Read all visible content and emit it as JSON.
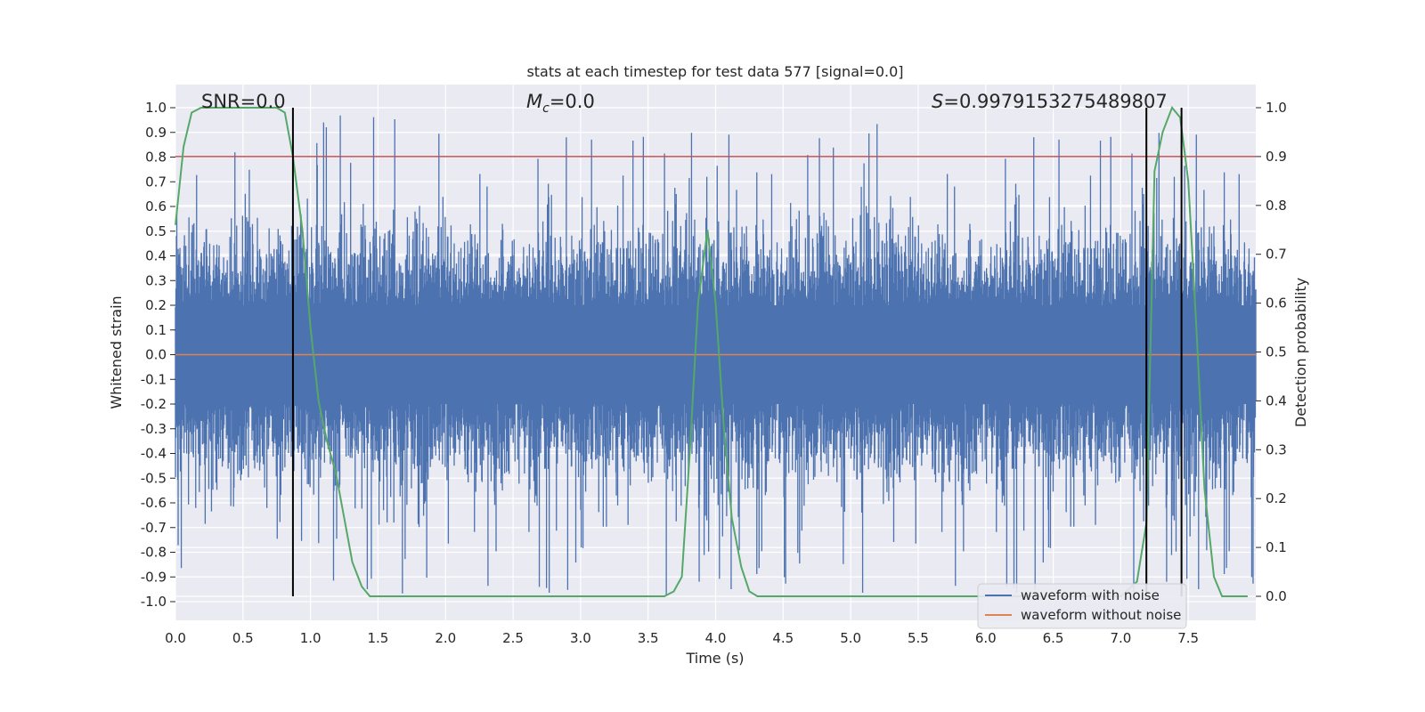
{
  "chart_data": {
    "type": "line",
    "title": "stats at each timestep for test data 577 [signal=0.0]",
    "xlabel": "Time (s)",
    "ylabel_left": "Whitened strain",
    "ylabel_right": "Detection probability",
    "xlim": [
      0.0,
      8.0
    ],
    "ylim_left": [
      -1.08,
      1.1
    ],
    "ylim_right": [
      -0.04,
      1.04
    ],
    "x_ticks": [
      "0.0",
      "0.5",
      "1.0",
      "1.5",
      "2.0",
      "2.5",
      "3.0",
      "3.5",
      "4.0",
      "4.5",
      "5.0",
      "5.5",
      "6.0",
      "6.5",
      "7.0",
      "7.5"
    ],
    "y_ticks_left": [
      "1.0",
      "0.9",
      "0.8",
      "0.7",
      "0.6",
      "0.5",
      "0.4",
      "0.3",
      "0.2",
      "0.1",
      "0.0",
      "-0.1",
      "-0.2",
      "-0.3",
      "-0.4",
      "-0.5",
      "-0.6",
      "-0.7",
      "-0.8",
      "-0.9",
      "-1.0"
    ],
    "y_ticks_right": [
      "1.0",
      "0.9",
      "0.8",
      "0.7",
      "0.6",
      "0.5",
      "0.4",
      "0.3",
      "0.2",
      "0.1",
      "0.0"
    ],
    "annotations": {
      "snr": "SNR=0.0",
      "mc_symbol": "M",
      "mc_sub": "c",
      "mc_value": "=0.0",
      "s_symbol": "S",
      "s_value": "=0.9979153275489807"
    },
    "threshold_right_axis": 0.9,
    "detection_markers_x": [
      0.87,
      7.19,
      7.45
    ],
    "series": [
      {
        "name": "waveform with noise",
        "color": "#4c72b0",
        "axis": "left",
        "x_range": [
          0.0,
          8.0
        ],
        "envelope_typical": 0.45,
        "envelope_peak": 0.98
      },
      {
        "name": "waveform without noise",
        "color": "#dd8452",
        "axis": "left",
        "x": [
          0.0,
          8.0
        ],
        "y": [
          0.0,
          0.0
        ]
      },
      {
        "color": "#55a868",
        "axis": "right",
        "x": [
          0.0,
          0.06,
          0.12,
          0.19,
          0.25,
          0.31,
          0.38,
          0.44,
          0.5,
          0.56,
          0.62,
          0.69,
          0.75,
          0.81,
          0.87,
          0.94,
          1.0,
          1.06,
          1.12,
          1.19,
          1.25,
          1.31,
          1.38,
          1.44,
          1.5,
          2.0,
          2.5,
          3.0,
          3.5,
          3.62,
          3.69,
          3.75,
          3.81,
          3.87,
          3.94,
          4.0,
          4.06,
          4.12,
          4.19,
          4.25,
          4.31,
          4.38,
          5.0,
          6.0,
          7.0,
          7.12,
          7.19,
          7.25,
          7.31,
          7.38,
          7.44,
          7.5,
          7.56,
          7.62,
          7.69,
          7.75,
          7.81,
          7.87,
          7.94
        ],
        "y": [
          0.76,
          0.92,
          0.99,
          1.0,
          1.0,
          1.0,
          1.0,
          1.0,
          1.0,
          1.0,
          1.0,
          1.0,
          1.0,
          0.99,
          0.9,
          0.75,
          0.55,
          0.4,
          0.32,
          0.25,
          0.16,
          0.07,
          0.02,
          0.0,
          0.0,
          0.0,
          0.0,
          0.0,
          0.0,
          0.0,
          0.01,
          0.04,
          0.3,
          0.6,
          0.75,
          0.6,
          0.35,
          0.16,
          0.06,
          0.01,
          0.0,
          0.0,
          0.0,
          0.0,
          0.0,
          0.03,
          0.15,
          0.87,
          0.95,
          1.0,
          0.98,
          0.85,
          0.55,
          0.22,
          0.04,
          0.0,
          0.0,
          0.0,
          0.0
        ]
      }
    ],
    "legend_placement": "lower-right",
    "grid": true
  }
}
